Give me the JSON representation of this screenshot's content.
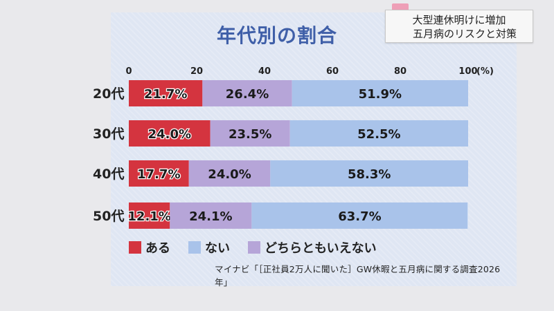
{
  "caption": {
    "line1": "大型連休明けに増加",
    "line2": "五月病のリスクと対策"
  },
  "colors": {
    "aru": "#d4343f",
    "nai": "#a9c3ea",
    "dochira": "#b6a5d8"
  },
  "chart_data": {
    "type": "bar",
    "orientation": "horizontal",
    "stacked": true,
    "title": "年代別の割合",
    "x_axis": {
      "ticks": [
        "0",
        "20",
        "40",
        "60",
        "80",
        "100"
      ],
      "unit_label": "(%)",
      "range": [
        0,
        100
      ]
    },
    "categories": [
      "20代",
      "30代",
      "40代",
      "50代"
    ],
    "series": [
      {
        "name": "ある",
        "values": [
          21.7,
          24.0,
          17.7,
          12.1
        ],
        "labels": [
          "21.7%",
          "24.0%",
          "17.7%",
          "12.1%"
        ]
      },
      {
        "name": "どちらともいえない",
        "values": [
          26.4,
          23.5,
          24.0,
          24.1
        ],
        "labels": [
          "26.4%",
          "23.5%",
          "24.0%",
          "24.1%"
        ]
      },
      {
        "name": "ない",
        "values": [
          51.9,
          52.5,
          58.3,
          63.7
        ],
        "labels": [
          "51.9%",
          "52.5%",
          "58.3%",
          "63.7%"
        ]
      }
    ],
    "legend": [
      "ある",
      "ない",
      "どちらともいえない"
    ],
    "legend_position": "bottom-left",
    "source": "マイナビ「［正社員2万人に聞いた］GW休暇と五月病に関する調査2026年」"
  }
}
